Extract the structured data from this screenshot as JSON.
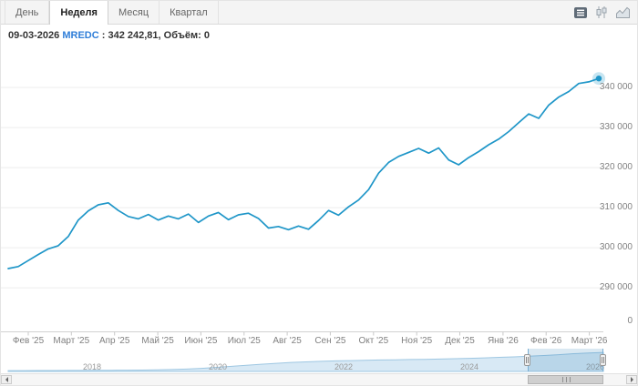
{
  "toolbar": {
    "tabs": [
      {
        "name": "tab-day",
        "label": "День",
        "active": false
      },
      {
        "name": "tab-week",
        "label": "Неделя",
        "active": true
      },
      {
        "name": "tab-month",
        "label": "Месяц",
        "active": false
      },
      {
        "name": "tab-quarter",
        "label": "Квартал",
        "active": false
      }
    ],
    "icons": [
      "export-menu-icon",
      "candlestick-chart-icon",
      "line-chart-icon"
    ]
  },
  "legend": {
    "date": "09-03-2026",
    "symbol": "MREDC",
    "price_text": ": 342 242,81,",
    "volume_text": "Объём: 0"
  },
  "colors": {
    "series_line": "#1f96c8",
    "symbol_text": "#2f7ed8",
    "navigator_fill": "#d8e9f5",
    "selection_tint": "rgba(47,126,184,0.18)"
  },
  "chart_data": {
    "type": "line",
    "title": "",
    "main": {
      "series_name": "MREDC",
      "interval": "weekly",
      "last_point": {
        "date": "09-03-2026",
        "value": 342242.81,
        "volume": 0
      },
      "x_tick_labels": [
        "Фев '25",
        "Март '25",
        "Апр '25",
        "Май '25",
        "Июн '25",
        "Июл '25",
        "Авг '25",
        "Сен '25",
        "Окт '25",
        "Ноя '25",
        "Дек '25",
        "Янв '26",
        "Фев '26",
        "Март '26"
      ],
      "y_ticks": [
        {
          "value": 340000,
          "label": "340 000"
        },
        {
          "value": 330000,
          "label": "330 000"
        },
        {
          "value": 320000,
          "label": "320 000"
        },
        {
          "value": 310000,
          "label": "310 000"
        },
        {
          "value": 300000,
          "label": "300 000"
        },
        {
          "value": 290000,
          "label": "290 000"
        }
      ],
      "y_zero_label": "0",
      "ylim": [
        288000,
        347000
      ],
      "grid": true,
      "values": [
        294800,
        295300,
        296800,
        298300,
        299700,
        300500,
        302800,
        306900,
        309200,
        310700,
        311200,
        309300,
        307800,
        307200,
        308300,
        306900,
        307900,
        307200,
        308400,
        306300,
        307900,
        308800,
        307000,
        308200,
        308600,
        307300,
        304900,
        305300,
        304500,
        305400,
        304600,
        306800,
        309300,
        308100,
        310200,
        311900,
        314500,
        318600,
        321300,
        322800,
        323800,
        324800,
        323600,
        324900,
        321900,
        320700,
        322500,
        324000,
        325700,
        327100,
        329000,
        331200,
        333400,
        332300,
        335600,
        337600,
        339000,
        341000,
        341400,
        342242.81
      ]
    },
    "navigator": {
      "type": "area",
      "year_labels": [
        "2018",
        "2020",
        "2022",
        "2024",
        "2026"
      ],
      "selection": {
        "start_fraction": 0.873,
        "end_fraction": 1.0
      },
      "values": [
        168000,
        168000,
        169000,
        169000,
        170000,
        170000,
        171000,
        171000,
        172000,
        173000,
        175000,
        178000,
        183000,
        190000,
        199000,
        209000,
        219000,
        229000,
        238000,
        246000,
        252000,
        257000,
        261000,
        264000,
        267000,
        270000,
        272000,
        274000,
        276000,
        279000,
        282000,
        286000,
        290000,
        295000,
        300000,
        306000,
        313000,
        321000,
        330000,
        336000,
        342243
      ]
    }
  }
}
